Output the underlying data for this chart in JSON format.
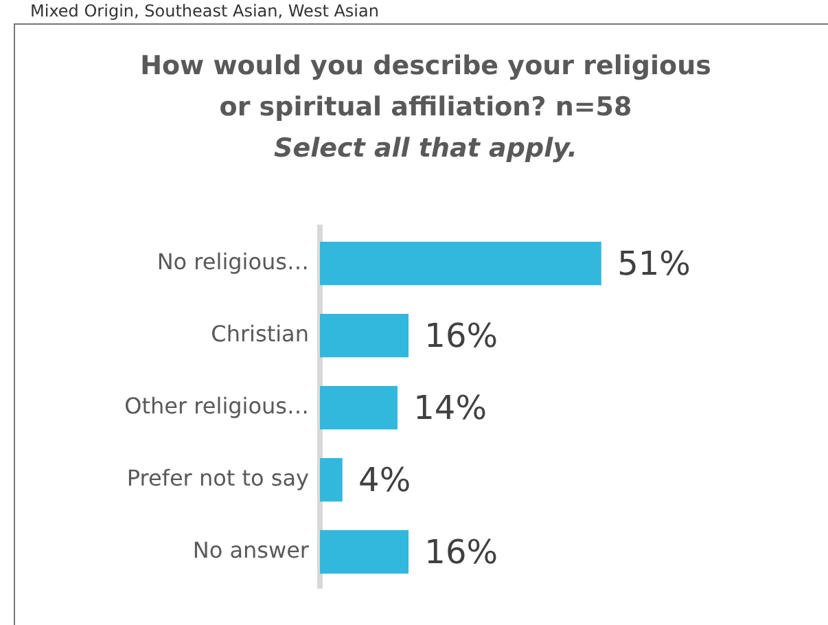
{
  "chart_data": {
    "type": "bar",
    "orientation": "horizontal",
    "title": "How would you describe your religious or spiritual affiliation? n=58",
    "subtitle": "Select all that apply.",
    "annotations": [
      "Mixed Origin, Southeast Asian, West Asian"
    ],
    "categories": [
      "No religious…",
      "Christian",
      "Other religious…",
      "Prefer not to say",
      "No answer"
    ],
    "values": [
      51,
      16,
      14,
      4,
      16
    ],
    "color": "#31b8dc",
    "value_labels": [
      "51%",
      "16%",
      "14%",
      "4%",
      "16%"
    ],
    "legend": false
  }
}
